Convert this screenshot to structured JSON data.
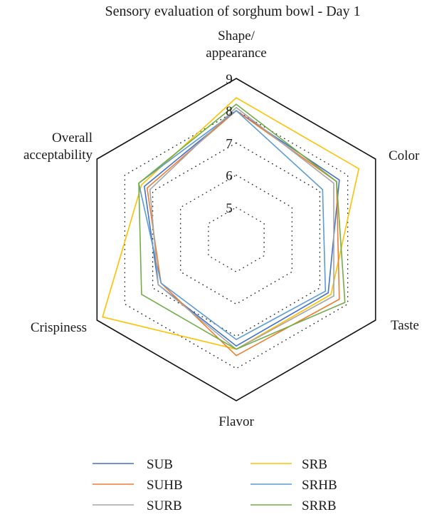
{
  "chart_data": {
    "type": "radar",
    "title": "Sensory evaluation of sorghum bowl - Day 1",
    "axes": [
      "Shape/ appearance",
      "Color",
      "Taste",
      "Flavor",
      "Crispiness",
      "Overall acceptability"
    ],
    "axis_label_lines": [
      [
        "Shape/",
        "appearance"
      ],
      [
        "Color"
      ],
      [
        "Taste"
      ],
      [
        "Flavor"
      ],
      [
        "Crispiness"
      ],
      [
        "Overall",
        "acceptability"
      ]
    ],
    "range": [
      4,
      9
    ],
    "ticks": [
      5,
      6,
      7,
      8,
      9
    ],
    "outer_frame_value": 9,
    "dotted_grid_values": [
      5,
      6,
      7,
      8
    ],
    "series": [
      {
        "name": "SUB",
        "color": "#4472C4",
        "values": [
          8.0,
          7.7,
          7.3,
          7.3,
          6.8,
          7.3
        ]
      },
      {
        "name": "SRB",
        "color": "#FFC000",
        "values": [
          8.4,
          8.4,
          7.4,
          7.4,
          8.8,
          7.4
        ]
      },
      {
        "name": "SUHB",
        "color": "#ED7D31",
        "values": [
          8.0,
          7.6,
          7.7,
          7.6,
          6.7,
          7.2
        ]
      },
      {
        "name": "SRHB",
        "color": "#5B9BD5",
        "values": [
          8.0,
          7.1,
          7.2,
          7.1,
          6.7,
          7.5
        ]
      },
      {
        "name": "SURB",
        "color": "#A5A5A5",
        "values": [
          8.1,
          7.5,
          7.5,
          7.4,
          6.8,
          7.1
        ]
      },
      {
        "name": "SRRB",
        "color": "#70AD47",
        "values": [
          8.2,
          7.6,
          7.9,
          7.4,
          7.4,
          7.5
        ]
      }
    ]
  }
}
